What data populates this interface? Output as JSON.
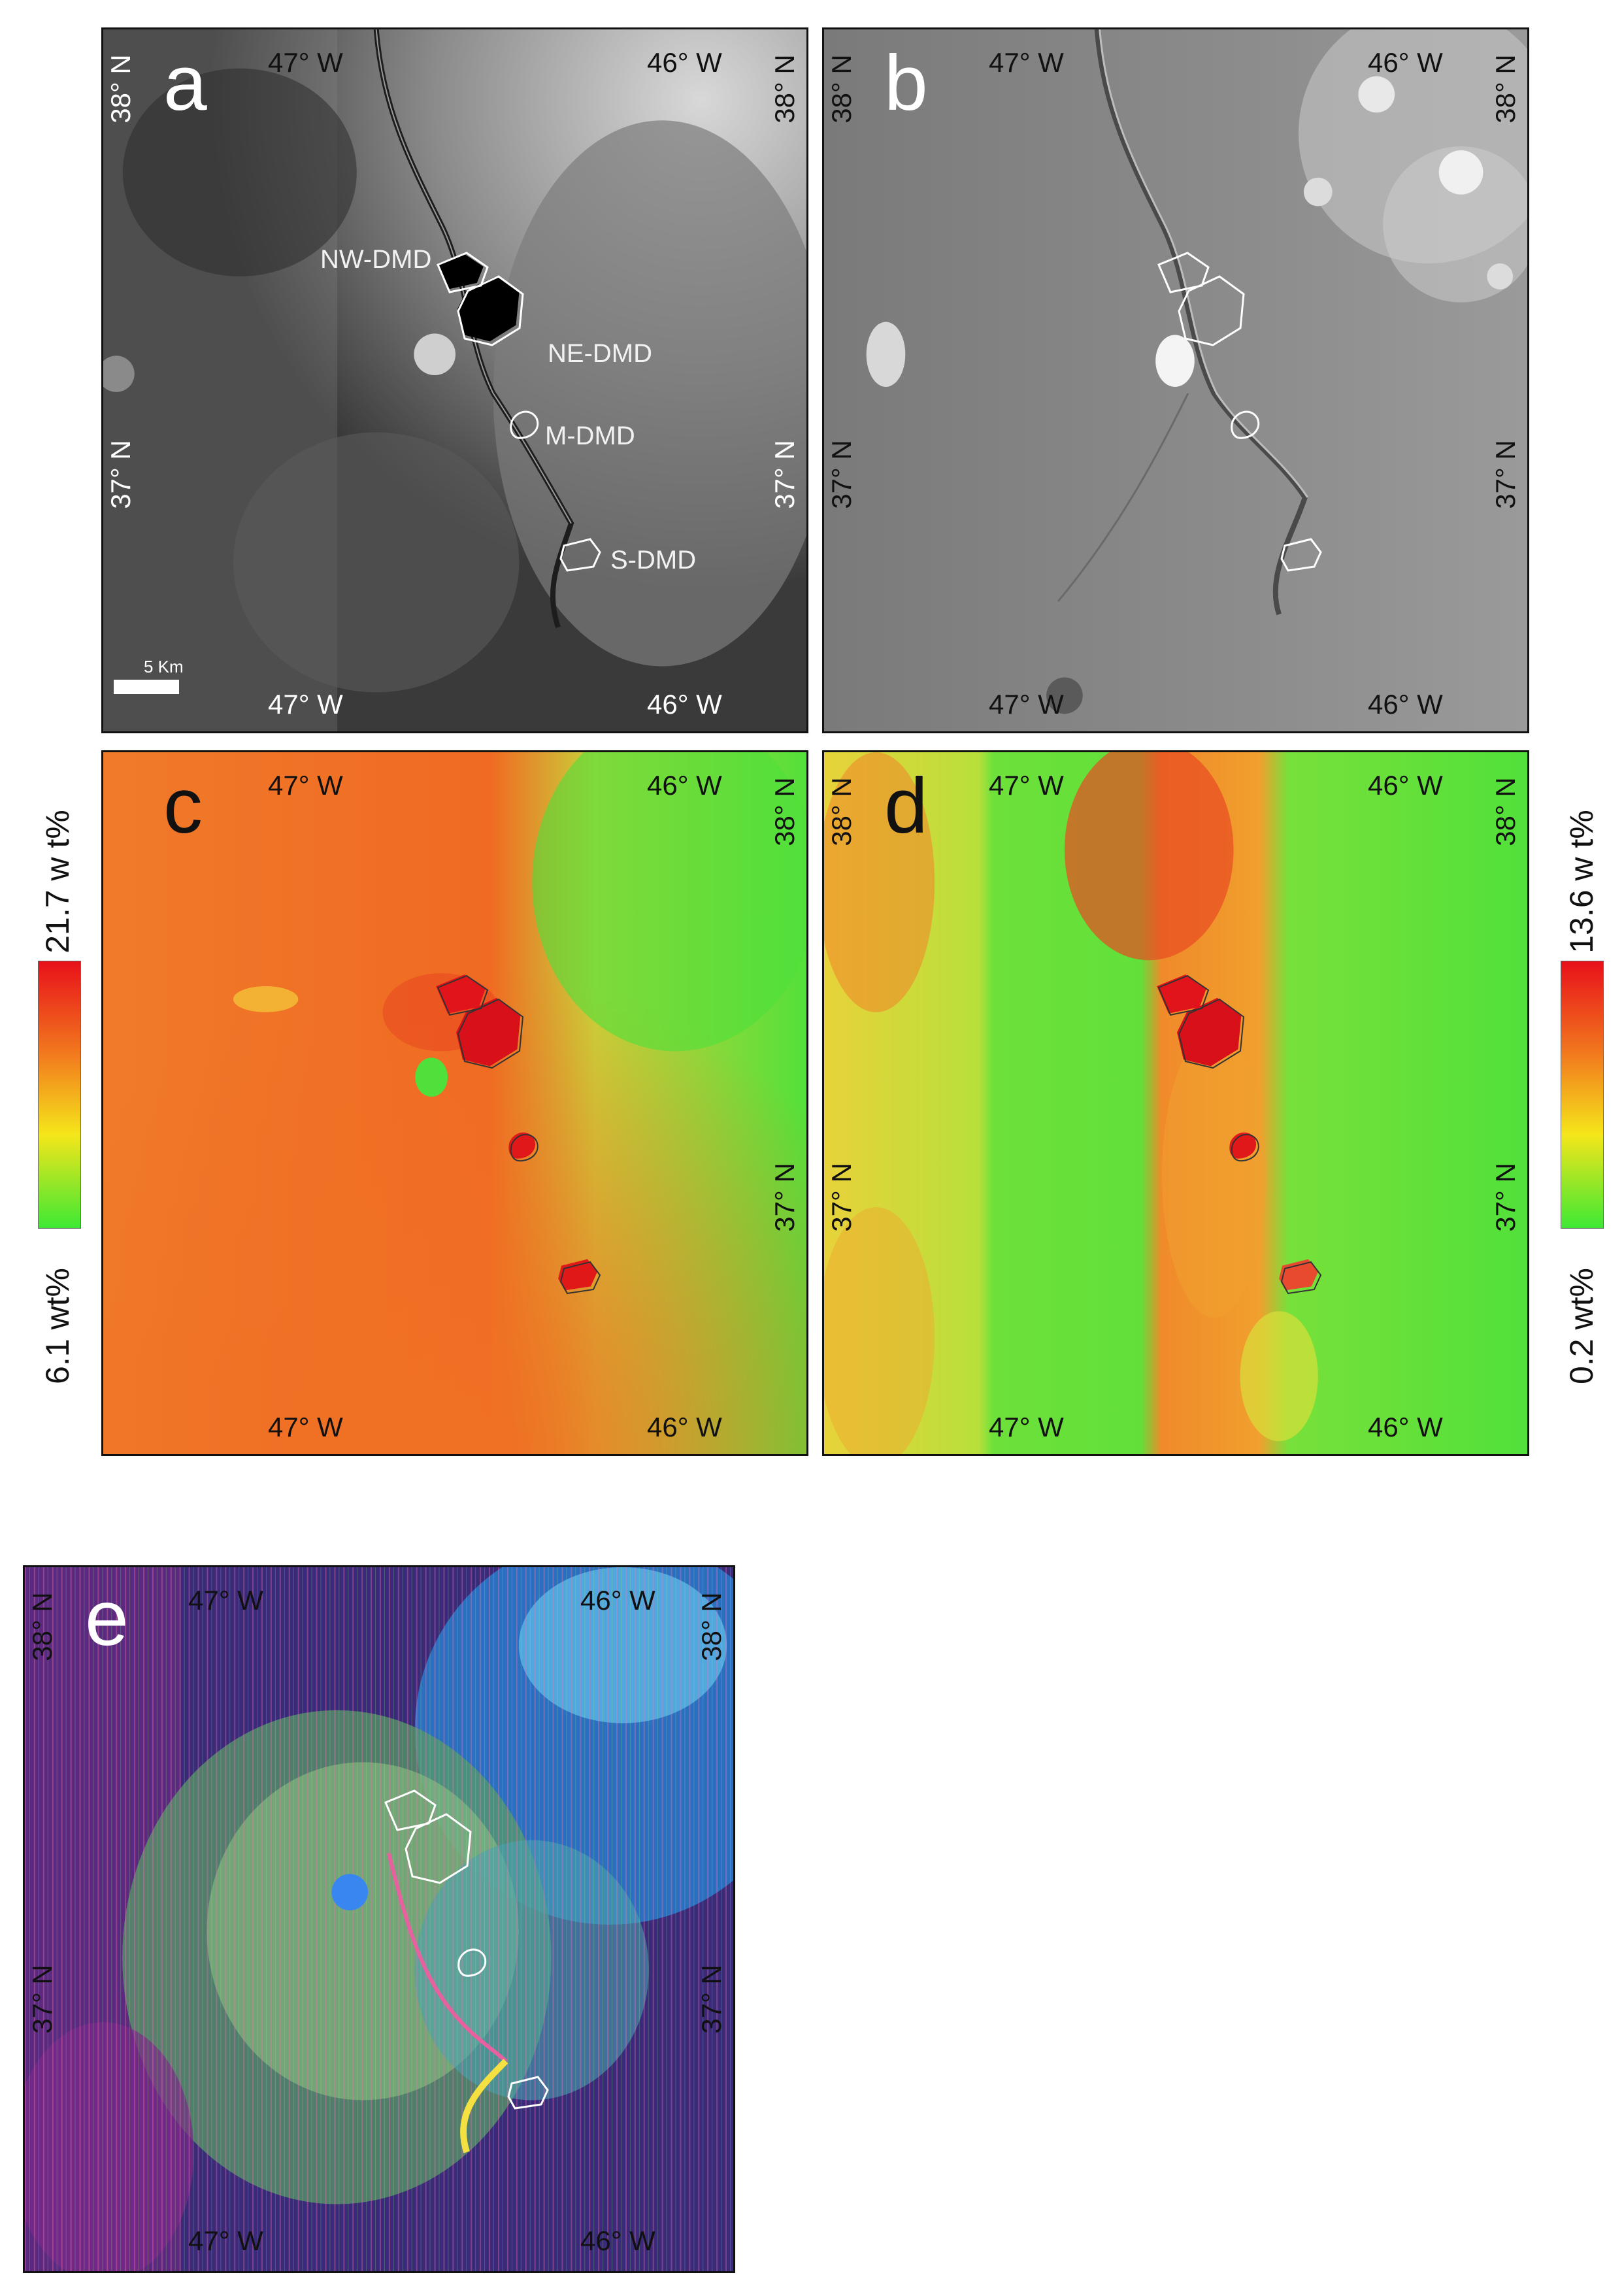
{
  "panels": {
    "a": {
      "letter": "a",
      "coords": {
        "top_left": "47° W",
        "top_right": "46° W",
        "bottom_left": "47° W",
        "bottom_right": "46° W",
        "left_top": "38° N",
        "left_mid": "37° N",
        "right_top": "38° N",
        "right_mid": "37° N"
      },
      "labels": {
        "nw": "NW-DMD",
        "ne": "NE-DMD",
        "m": "M-DMD",
        "s": "S-DMD"
      },
      "scale": "5 Km"
    },
    "b": {
      "letter": "b",
      "coords": {
        "top_left": "47° W",
        "top_right": "46° W",
        "bottom_left": "47° W",
        "bottom_right": "46° W",
        "left_top": "38° N",
        "left_mid": "37° N",
        "right_top": "38° N",
        "right_mid": "37° N"
      }
    },
    "c": {
      "letter": "c",
      "coords": {
        "top_left": "47° W",
        "top_right": "46° W",
        "bottom_left": "47° W",
        "bottom_right": "46° W",
        "right_top": "38° N",
        "right_mid": "37° N"
      }
    },
    "d": {
      "letter": "d",
      "coords": {
        "top_left": "47° W",
        "top_right": "46° W",
        "bottom_left": "47° W",
        "bottom_right": "46° W",
        "left_top": "38° N",
        "left_mid": "37° N",
        "right_top": "38° N",
        "right_mid": "37° N"
      }
    },
    "e": {
      "letter": "e",
      "coords": {
        "top_left": "47° W",
        "top_right": "46° W",
        "bottom_left": "47° W",
        "bottom_right": "46° W",
        "left_top": "38° N",
        "left_mid": "37° N",
        "right_top": "38° N",
        "right_mid": "37° N"
      }
    }
  },
  "colorbars": {
    "left": {
      "max": "21.7 w t%",
      "min": "6.1 wt%"
    },
    "right": {
      "max": "13.6 w t%",
      "min": "0.2 wt%"
    }
  },
  "colors": {
    "border": "#111111",
    "abundance_high": "#e8101a",
    "abundance_mid": "#f5e61a",
    "abundance_low": "#3ee834"
  }
}
